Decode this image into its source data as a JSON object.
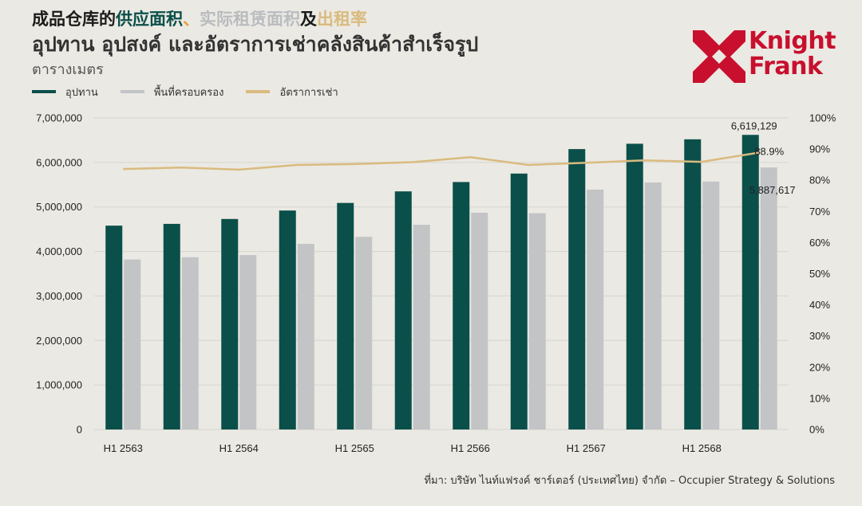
{
  "header": {
    "title_cn_parts": [
      "成品仓库的",
      "供应面积",
      "、",
      "实际租赁面积",
      "及",
      "出租率"
    ],
    "title_th": "อุปทาน อุปสงค์ และอัตราการเช่าคลังสินค้าสำเร็จรูป",
    "unit": "ตารางเมตร"
  },
  "logo": {
    "line1": "Knight",
    "line2": "Frank"
  },
  "source": "ที่มา: บริษัท ไนท์แฟรงค์ ชาร์เตอร์ (ประเทศไทย) จำกัด – Occupier Strategy & Solutions",
  "colors": {
    "supply": "#0b4f4a",
    "occupied": "#c2c4c6",
    "rate": "#d9bb7f",
    "brand": "#c8102e"
  },
  "chart_data": {
    "type": "bar",
    "x_tick_labels": [
      "H1 2563",
      "H1 2564",
      "H1 2565",
      "H1 2566",
      "H1 2567",
      "H1 2568"
    ],
    "periods": 12,
    "series": [
      {
        "name": "อุปทาน",
        "type": "bar",
        "axis": "left",
        "values": [
          4580000,
          4620000,
          4730000,
          4920000,
          5090000,
          5350000,
          5560000,
          5750000,
          6300000,
          6420000,
          6520000,
          6619129
        ]
      },
      {
        "name": "พื้นที่ครอบครอง",
        "type": "bar",
        "axis": "left",
        "values": [
          3820000,
          3870000,
          3920000,
          4170000,
          4330000,
          4600000,
          4870000,
          4860000,
          5390000,
          5550000,
          5570000,
          5887617
        ]
      },
      {
        "name": "อัตราการเช่า",
        "type": "line",
        "axis": "right",
        "values": [
          0.836,
          0.841,
          0.834,
          0.849,
          0.852,
          0.858,
          0.874,
          0.849,
          0.856,
          0.864,
          0.859,
          0.889
        ]
      }
    ],
    "y_left": {
      "min": 0,
      "max": 7000000,
      "step": 1000000,
      "tick_labels": [
        "0",
        "1,000,000",
        "2,000,000",
        "3,000,000",
        "4,000,000",
        "5,000,000",
        "6,000,000",
        "7,000,000"
      ]
    },
    "y_right": {
      "min": 0,
      "max": 1,
      "step": 0.1,
      "tick_labels": [
        "0%",
        "10%",
        "20%",
        "30%",
        "40%",
        "50%",
        "60%",
        "70%",
        "80%",
        "90%",
        "100%"
      ]
    },
    "data_labels": {
      "supply_last": "6,619,129",
      "occupied_last": "5,887,617",
      "rate_last": "88.9%"
    },
    "grid": true,
    "legend_position": "top-left"
  }
}
